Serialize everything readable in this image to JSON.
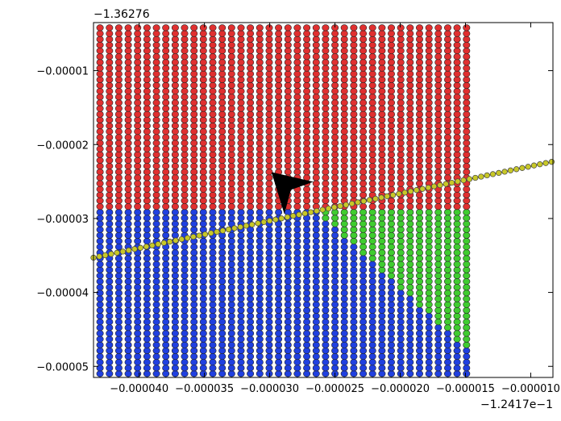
{
  "chart_data": {
    "type": "scatter",
    "title": "",
    "xlabel": "",
    "ylabel": "",
    "x_offset_label": "−1.2417e−1",
    "y_offset_label": "−1.36276",
    "xlim": [
      -4.35e-05,
      -8.3e-06
    ],
    "ylim": [
      -5.15e-05,
      -3.5e-06
    ],
    "x_ticks": [
      -4e-05,
      -3.5e-05,
      -3e-05,
      -2.5e-05,
      -2e-05,
      -1.5e-05,
      -1e-05
    ],
    "x_tick_labels": [
      "−0.000040",
      "−0.000035",
      "−0.000030",
      "−0.000025",
      "−0.000020",
      "−0.000015",
      "−0.000010"
    ],
    "y_ticks": [
      -1e-05,
      -2e-05,
      -3e-05,
      -4e-05,
      -5e-05
    ],
    "y_tick_labels": [
      "−0.00001",
      "−0.00002",
      "−0.00003",
      "−0.00004",
      "−0.00005"
    ],
    "grid": false,
    "legend": "none",
    "point_grid": {
      "x_start": -4.3e-05,
      "x_step": 7.2e-07,
      "x_count": 40,
      "y_start": -5.1e-05,
      "y_step": 7.8e-07,
      "y_count": 61
    },
    "regions": {
      "red_above_y": -2.9e-05,
      "blue_right_edge_top_x": -2.8e-05,
      "blue_right_edge_bottom_x": -2.05e-05,
      "green_left_edge_top_x": -2.65e-05,
      "green_left_edge_bottom_x": -1.3e-05
    },
    "series": [
      {
        "color": "#e03030"
      },
      {
        "color": "#2040e0"
      },
      {
        "color": "#40cc30"
      }
    ],
    "path_line": {
      "x": [
        -4.35e-05,
        -8.3e-06
      ],
      "y": [
        -3.53e-05,
        -2.23e-05
      ],
      "point_step": 4.5e-07,
      "color": "#c8c828"
    },
    "arrow_marker": {
      "x": -2.9e-05,
      "y": -2.7e-05,
      "color": "#000000"
    }
  }
}
